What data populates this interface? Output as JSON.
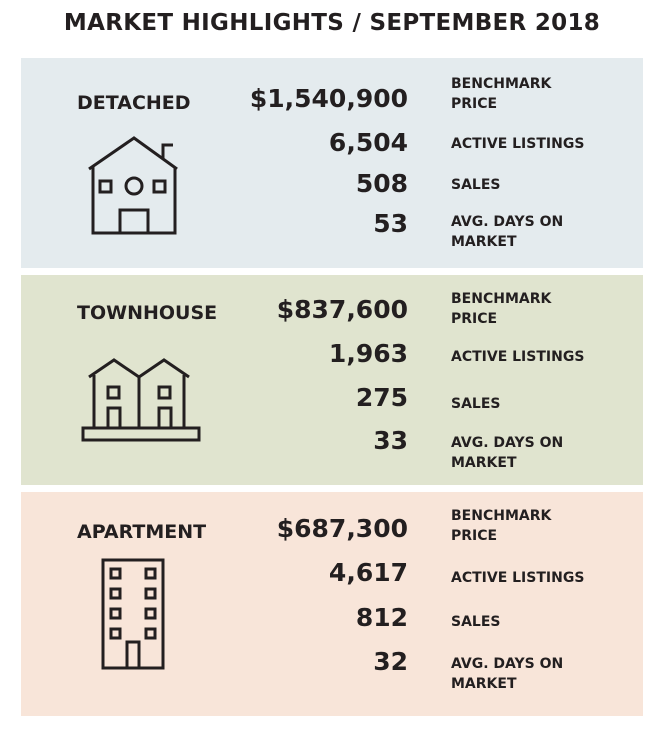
{
  "title": "MARKET HIGHLIGHTS / SEPTEMBER 2018",
  "colors": {
    "detached_bg": "#e4ebee",
    "townhouse_bg": "#e0e4cf",
    "apartment_bg": "#f8e5d9",
    "text": "#231f20"
  },
  "categories": [
    {
      "name": "DETACHED",
      "icon": "house-icon",
      "stats": {
        "benchmark_price": "$1,540,900",
        "active_listings": "6,504",
        "sales": "508",
        "avg_days_on_market": "53"
      }
    },
    {
      "name": "TOWNHOUSE",
      "icon": "townhouse-icon",
      "stats": {
        "benchmark_price": "$837,600",
        "active_listings": "1,963",
        "sales": "275",
        "avg_days_on_market": "33"
      }
    },
    {
      "name": "APARTMENT",
      "icon": "apartment-building-icon",
      "stats": {
        "benchmark_price": "$687,300",
        "active_listings": "4,617",
        "sales": "812",
        "avg_days_on_market": "32"
      }
    }
  ],
  "labels": {
    "benchmark_line1": "BENCHMARK",
    "benchmark_line2": "PRICE",
    "active_listings": "ACTIVE LISTINGS",
    "sales": "SALES",
    "avg_days_line1": "AVG. DAYS ON",
    "avg_days_line2": "MARKET"
  }
}
